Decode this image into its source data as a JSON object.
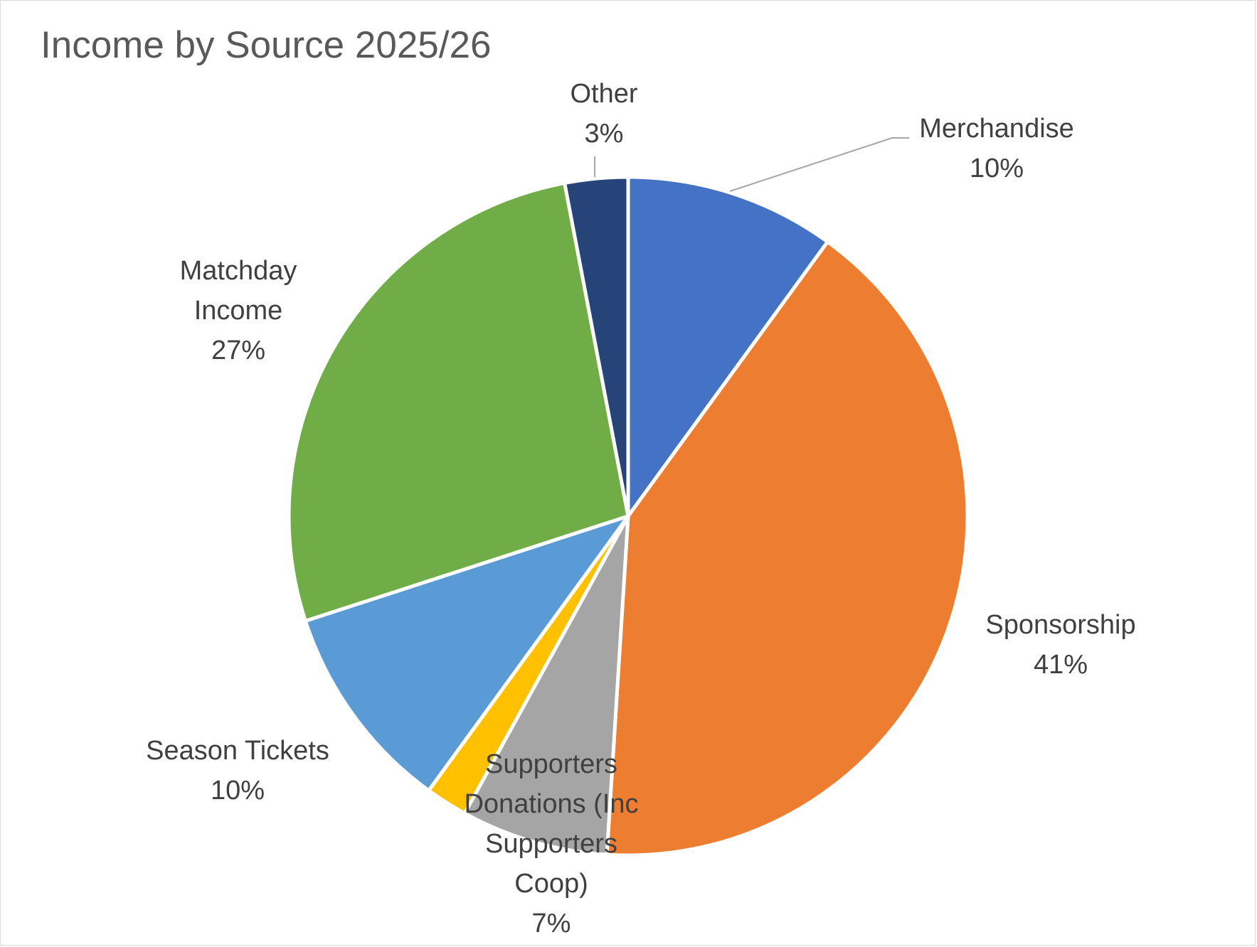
{
  "chart_data": {
    "type": "pie",
    "title": "Income by Source 2025/26",
    "slices": [
      {
        "name": "Merchandise",
        "label_lines": [
          "Merchandise"
        ],
        "value": 10,
        "percent_label": "10%",
        "color": "#4472C4"
      },
      {
        "name": "Sponsorship",
        "label_lines": [
          "Sponsorship"
        ],
        "value": 41,
        "percent_label": "41%",
        "color": "#ED7D31"
      },
      {
        "name": "Supporters Donations (Inc Supporters Coop)",
        "label_lines": [
          "Supporters",
          "Donations (Inc",
          "Supporters",
          "Coop)"
        ],
        "value": 7,
        "percent_label": "7%",
        "color": "#A5A5A5"
      },
      {
        "name": "",
        "label_lines": [],
        "value": 2,
        "percent_label": "",
        "color": "#FFC000"
      },
      {
        "name": "Season Tickets",
        "label_lines": [
          "Season Tickets"
        ],
        "value": 10,
        "percent_label": "10%",
        "color": "#5B9BD5"
      },
      {
        "name": "Matchday Income",
        "label_lines": [
          "Matchday",
          "Income"
        ],
        "value": 27,
        "percent_label": "27%",
        "color": "#70AD47"
      },
      {
        "name": "Other",
        "label_lines": [
          "Other"
        ],
        "value": 3,
        "percent_label": "3%",
        "color": "#264478"
      }
    ]
  }
}
